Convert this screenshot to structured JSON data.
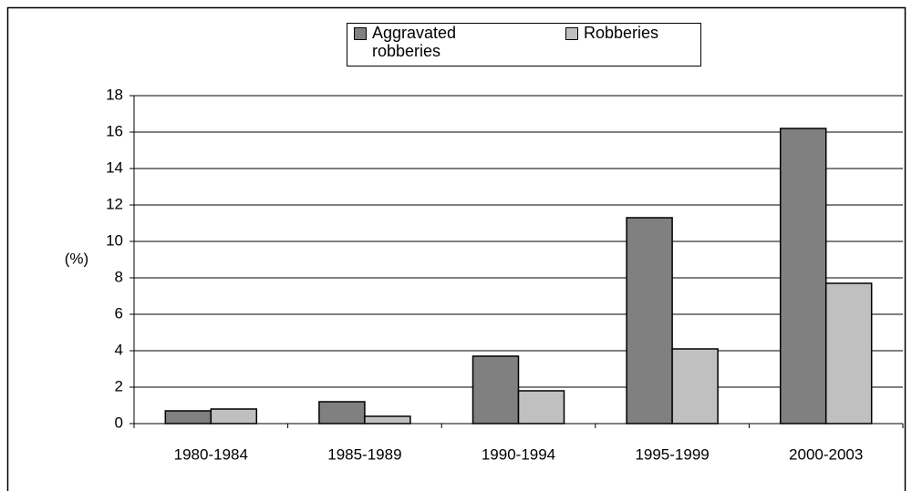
{
  "chart_data": {
    "type": "bar",
    "y_label": "(%)",
    "categories": [
      "1980-1984",
      "1985-1989",
      "1990-1994",
      "1995-1999",
      "2000-2003"
    ],
    "series": [
      {
        "name": "Aggravated robberies",
        "color": "#808080",
        "values": [
          0.7,
          1.2,
          3.7,
          11.3,
          16.2
        ]
      },
      {
        "name": "Robberies",
        "color": "#c0c0c0",
        "values": [
          0.8,
          0.4,
          1.8,
          4.1,
          7.7
        ]
      }
    ],
    "ylim": [
      0,
      18
    ],
    "yticks": [
      0,
      2,
      4,
      6,
      8,
      10,
      12,
      14,
      16,
      18
    ],
    "grid": true
  }
}
